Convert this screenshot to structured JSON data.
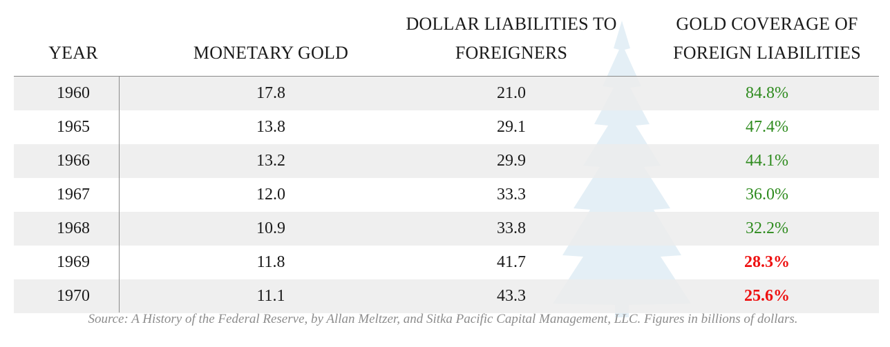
{
  "colors": {
    "ok": "#2e8b1e",
    "warn": "#ee1111",
    "shade": "#ececec",
    "watermark": "#dbe9f3"
  },
  "headers": {
    "year": "YEAR",
    "gold": "MONETARY GOLD",
    "liab_line1": "DOLLAR LIABILITIES TO",
    "liab_line2": "FOREIGNERS",
    "cov_line1": "GOLD COVERAGE OF",
    "cov_line2": "FOREIGN LIABILITIES"
  },
  "rows": [
    {
      "year": "1960",
      "gold": "17.8",
      "liab": "21.0",
      "cov": "84.8%",
      "status": "ok"
    },
    {
      "year": "1965",
      "gold": "13.8",
      "liab": "29.1",
      "cov": "47.4%",
      "status": "ok"
    },
    {
      "year": "1966",
      "gold": "13.2",
      "liab": "29.9",
      "cov": "44.1%",
      "status": "ok"
    },
    {
      "year": "1967",
      "gold": "12.0",
      "liab": "33.3",
      "cov": "36.0%",
      "status": "ok"
    },
    {
      "year": "1968",
      "gold": "10.9",
      "liab": "33.8",
      "cov": "32.2%",
      "status": "ok"
    },
    {
      "year": "1969",
      "gold": "11.8",
      "liab": "41.7",
      "cov": "28.3%",
      "status": "warn"
    },
    {
      "year": "1970",
      "gold": "11.1",
      "liab": "43.3",
      "cov": "25.6%",
      "status": "warn"
    }
  ],
  "source": "Source: A History of the Federal Reserve, by Allan Meltzer, and Sitka Pacific Capital Management, LLC.  Figures in billions of dollars.",
  "chart_data": {
    "type": "table",
    "columns": [
      "YEAR",
      "MONETARY GOLD",
      "DOLLAR LIABILITIES TO FOREIGNERS",
      "GOLD COVERAGE OF FOREIGN LIABILITIES"
    ],
    "rows": [
      [
        "1960",
        17.8,
        21.0,
        "84.8%"
      ],
      [
        "1965",
        13.8,
        29.1,
        "47.4%"
      ],
      [
        "1966",
        13.2,
        29.9,
        "44.1%"
      ],
      [
        "1967",
        12.0,
        33.3,
        "36.0%"
      ],
      [
        "1968",
        10.9,
        33.8,
        "32.2%"
      ],
      [
        "1969",
        11.8,
        41.7,
        "28.3%"
      ],
      [
        "1970",
        11.1,
        43.3,
        "25.6%"
      ]
    ]
  }
}
